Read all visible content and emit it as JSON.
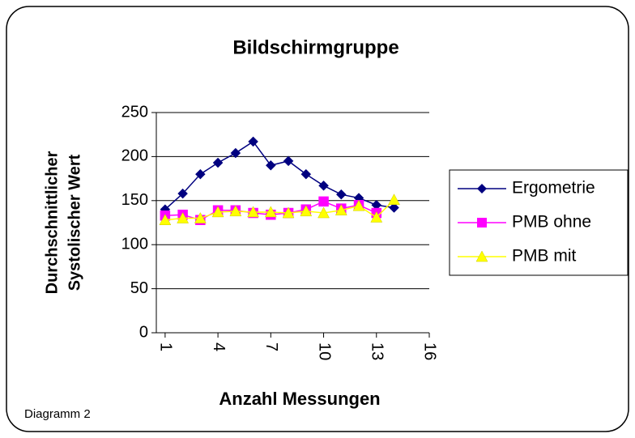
{
  "chart_data": {
    "type": "line",
    "title": "Bildschirmgruppe",
    "x_label": "Anzahl Messungen",
    "y_label": [
      "Durchschnittlicher",
      "Systolischer Wert"
    ],
    "annotation": "Diagramm 2",
    "x": [
      1,
      2,
      3,
      4,
      5,
      6,
      7,
      8,
      9,
      10,
      11,
      12,
      13,
      14
    ],
    "series": [
      {
        "name": "Ergometrie",
        "color": "#000080",
        "marker": "diamond",
        "values": [
          140,
          158,
          180,
          193,
          204,
          217,
          190,
          195,
          180,
          167,
          157,
          153,
          145,
          142
        ]
      },
      {
        "name": "PMB ohne",
        "color": "#ff00ff",
        "marker": "square",
        "values": [
          133,
          134,
          128,
          139,
          139,
          136,
          134,
          136,
          140,
          149,
          141,
          145,
          136,
          null
        ]
      },
      {
        "name": "PMB mit",
        "color": "#ffff00",
        "marker": "triangle",
        "values": [
          128,
          130,
          130,
          137,
          138,
          137,
          137,
          136,
          138,
          136,
          139,
          144,
          131,
          151
        ]
      }
    ],
    "xlim": [
      0.5,
      16
    ],
    "xticks": [
      1,
      4,
      7,
      10,
      13,
      16
    ],
    "ylim": [
      0,
      250
    ],
    "yticks": [
      0,
      50,
      100,
      150,
      200,
      250
    ],
    "grid": true,
    "legend": "right"
  }
}
